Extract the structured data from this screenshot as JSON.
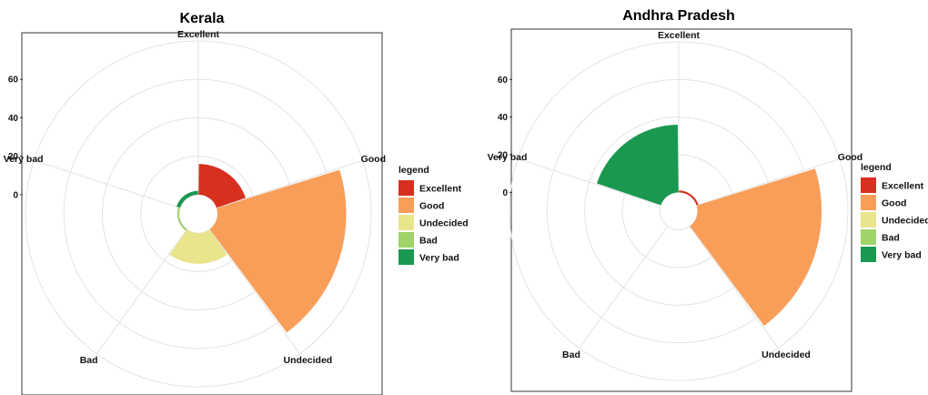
{
  "chart_data": [
    {
      "type": "polar_bar",
      "title": "Kerala",
      "categories": [
        "Excellent",
        "Good",
        "Undecided",
        "Bad",
        "Very bad"
      ],
      "values": [
        16,
        67,
        16,
        1,
        2
      ],
      "rticks": [
        0,
        20,
        40,
        60
      ],
      "rmin": -10,
      "rmax": 80,
      "legend": {
        "title": "legend",
        "entries": [
          "Excellent",
          "Good",
          "Undecided",
          "Bad",
          "Very bad"
        ],
        "placement": "right"
      }
    },
    {
      "type": "polar_bar",
      "title": "Andhra Pradesh",
      "categories": [
        "Excellent",
        "Good",
        "Undecided",
        "Bad",
        "Very bad"
      ],
      "values": [
        1,
        66,
        0,
        0,
        36
      ],
      "rticks": [
        0,
        20,
        40,
        60
      ],
      "rmin": -10,
      "rmax": 80,
      "legend": {
        "title": "legend",
        "entries": [
          "Excellent",
          "Good",
          "Undecided",
          "Bad",
          "Very bad"
        ],
        "placement": "right"
      }
    }
  ],
  "colors": {
    "Excellent": "#d7301f",
    "Good": "#f99e59",
    "Undecided": "#e9e58d",
    "Bad": "#9fd46b",
    "Very bad": "#1a9850"
  }
}
